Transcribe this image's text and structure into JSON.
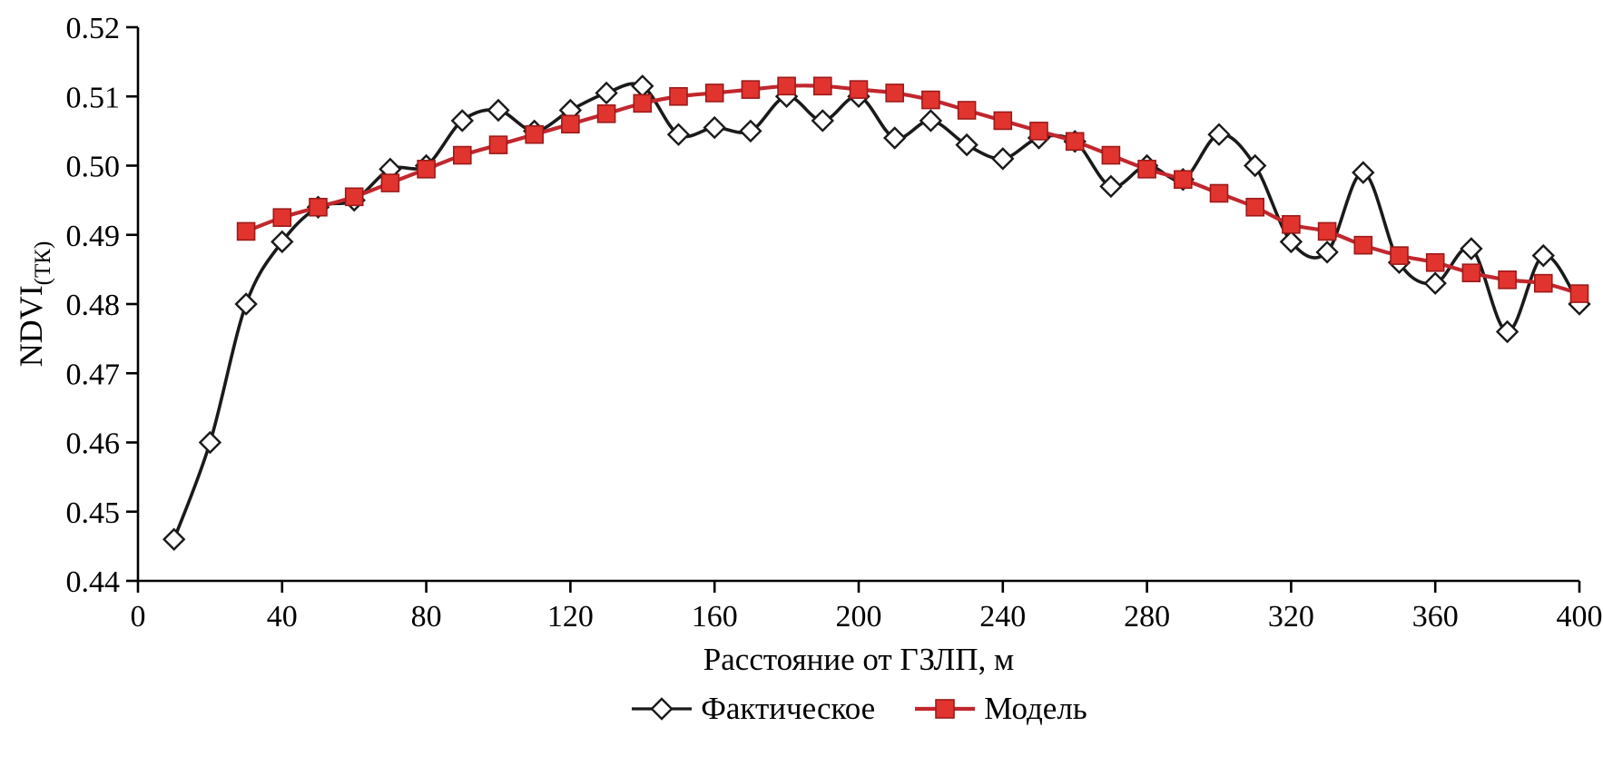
{
  "chart_data": {
    "type": "line",
    "title": "",
    "xlabel": "Расстояние от ГЗЛП, м",
    "ylabel_main": "NDVI",
    "ylabel_sub": "(ТК)",
    "xlim": [
      0,
      400
    ],
    "ylim": [
      0.44,
      0.52
    ],
    "x_ticks": [
      0,
      40,
      80,
      120,
      160,
      200,
      240,
      280,
      320,
      360,
      400
    ],
    "y_ticks": [
      0.44,
      0.45,
      0.46,
      0.47,
      0.48,
      0.49,
      0.5,
      0.51,
      0.52
    ],
    "grid": false,
    "legend_position": "bottom",
    "series": [
      {
        "name": "Фактическое",
        "marker": "diamond",
        "line": "#1a1a1a",
        "line_width": 3.6,
        "marker_fill": "#ffffff",
        "marker_stroke": "#1a1a1a",
        "x": [
          10,
          20,
          30,
          40,
          50,
          60,
          70,
          80,
          90,
          100,
          110,
          120,
          130,
          140,
          150,
          160,
          170,
          180,
          190,
          200,
          210,
          220,
          230,
          240,
          250,
          260,
          270,
          280,
          290,
          300,
          310,
          320,
          330,
          340,
          350,
          360,
          370,
          380,
          390,
          400
        ],
        "y": [
          0.446,
          0.46,
          0.48,
          0.489,
          0.494,
          0.495,
          0.4995,
          0.5,
          0.5065,
          0.508,
          0.505,
          0.508,
          0.5105,
          0.5115,
          0.5045,
          0.5055,
          0.505,
          0.51,
          0.5065,
          0.51,
          0.504,
          0.5065,
          0.503,
          0.501,
          0.504,
          0.5035,
          0.497,
          0.5,
          0.498,
          0.5045,
          0.5,
          0.489,
          0.4875,
          0.499,
          0.486,
          0.483,
          0.488,
          0.476,
          0.487,
          0.48
        ]
      },
      {
        "name": "Модель",
        "marker": "square",
        "line": "#c1272d",
        "line_width": 4.2,
        "marker_fill": "#e2342e",
        "marker_stroke": "#9c1a1a",
        "x": [
          30,
          40,
          50,
          60,
          70,
          80,
          90,
          100,
          110,
          120,
          130,
          140,
          150,
          160,
          170,
          180,
          190,
          200,
          210,
          220,
          230,
          240,
          250,
          260,
          270,
          280,
          290,
          300,
          310,
          320,
          330,
          340,
          350,
          360,
          370,
          380,
          390,
          400
        ],
        "y": [
          0.4905,
          0.4925,
          0.494,
          0.4955,
          0.4975,
          0.4995,
          0.5015,
          0.503,
          0.5045,
          0.506,
          0.5075,
          0.509,
          0.51,
          0.5105,
          0.511,
          0.5115,
          0.5115,
          0.511,
          0.5105,
          0.5095,
          0.508,
          0.5065,
          0.505,
          0.5035,
          0.5015,
          0.4995,
          0.498,
          0.496,
          0.494,
          0.4915,
          0.4905,
          0.4885,
          0.487,
          0.486,
          0.4845,
          0.4835,
          0.483,
          0.4815
        ]
      }
    ],
    "axis_color": "#000000"
  }
}
